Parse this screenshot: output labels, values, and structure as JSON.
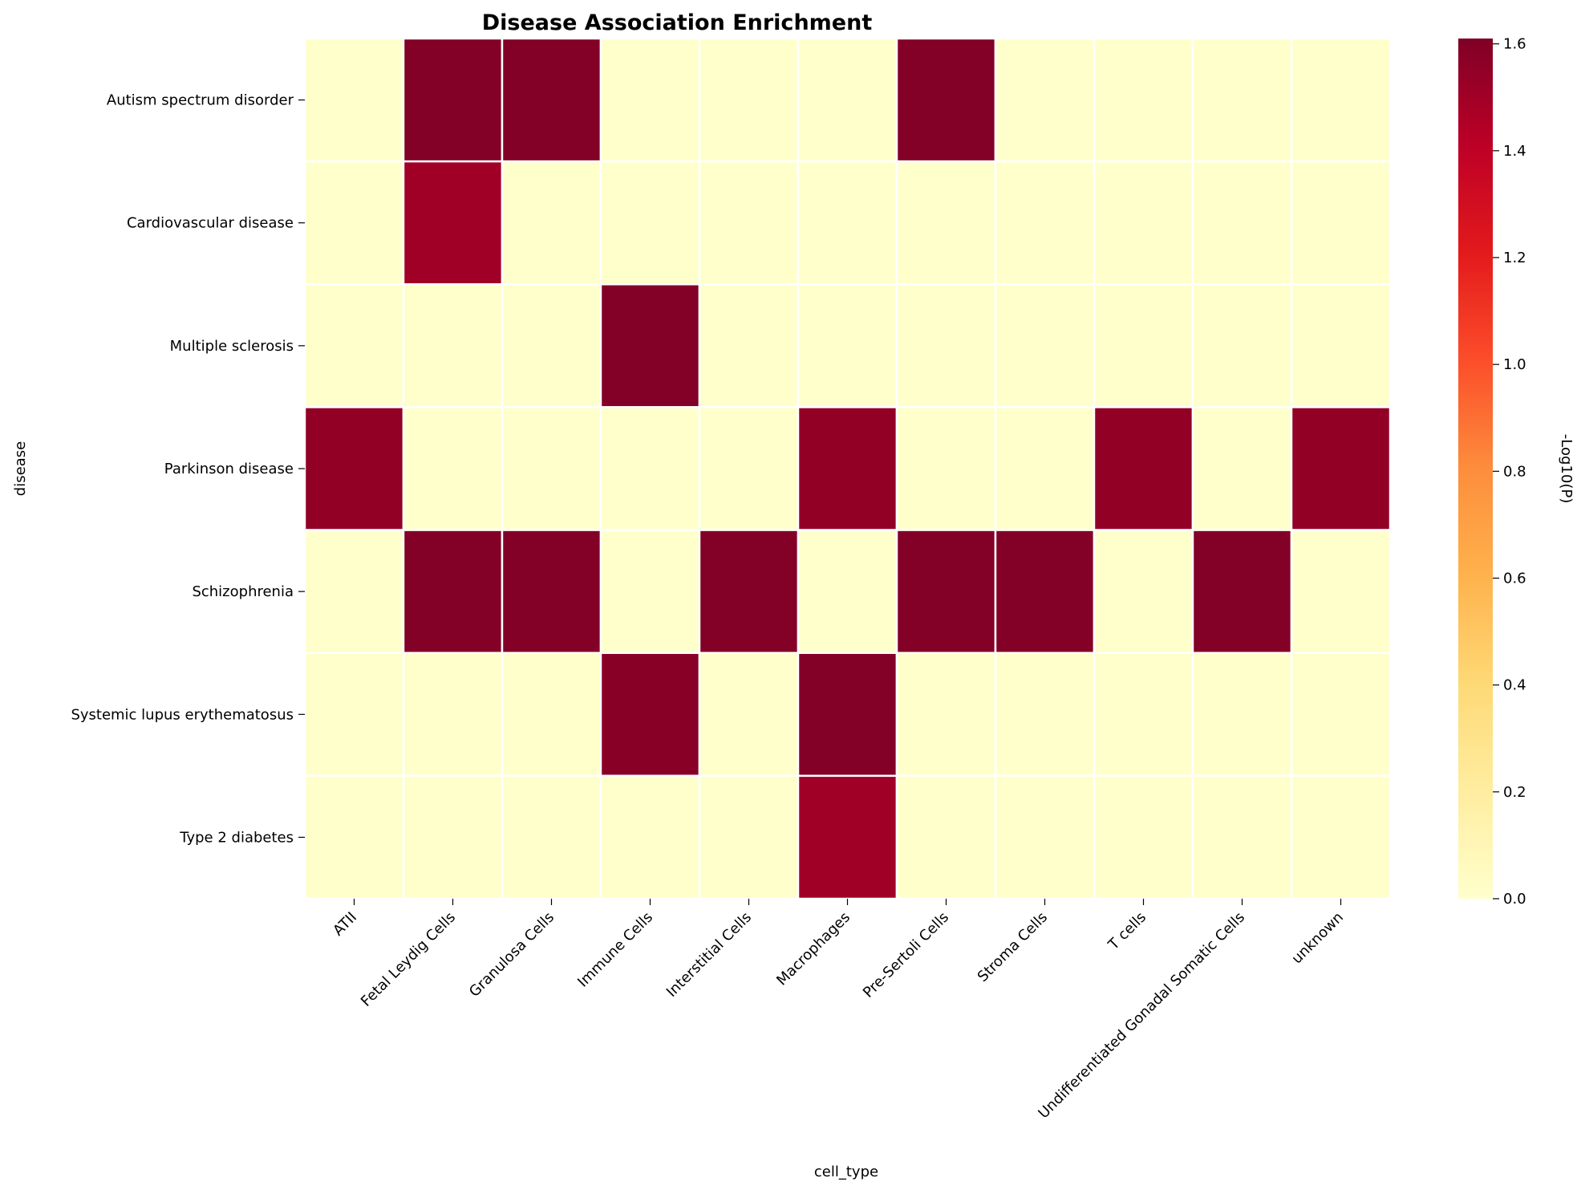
{
  "chart_data": {
    "type": "heatmap",
    "title": "Disease Association Enrichment",
    "xlabel": "cell_type",
    "ylabel": "disease",
    "colorbar_label": "-Log10(P)",
    "colormap": "YlOrRd",
    "colorbar_ticks": [
      "0.0",
      "0.2",
      "0.4",
      "0.6",
      "0.8",
      "1.0",
      "1.2",
      "1.4",
      "1.6"
    ],
    "vmin": 0,
    "vmax": 1.61,
    "cell_border_color": "#ffffff",
    "x_categories": [
      "ATII",
      "Fetal Leydig Cells",
      "Granulosa Cells",
      "Immune Cells",
      "Interstitial Cells",
      "Macrophages",
      "Pre-Sertoli Cells",
      "Stroma Cells",
      "T cells",
      "Undifferentiated Gonadal Somatic Cells",
      "unknown"
    ],
    "y_categories": [
      "Autism spectrum disorder",
      "Cardiovascular disease",
      "Multiple sclerosis",
      "Parkinson disease",
      "Schizophrenia",
      "Systemic lupus erythematosus",
      "Type 2 diabetes"
    ],
    "values": [
      [
        0,
        1.6,
        1.6,
        0,
        0,
        0,
        1.6,
        0,
        0,
        0,
        0
      ],
      [
        0,
        1.5,
        0,
        0,
        0,
        0,
        0,
        0,
        0,
        0,
        0
      ],
      [
        0,
        0,
        0,
        1.6,
        0,
        0,
        0,
        0,
        0,
        0,
        0
      ],
      [
        1.55,
        0,
        0,
        0,
        0,
        1.55,
        0,
        0,
        1.55,
        0,
        1.55
      ],
      [
        0,
        1.6,
        1.6,
        0,
        1.6,
        0,
        1.6,
        1.6,
        0,
        1.6,
        0
      ],
      [
        0,
        0,
        0,
        1.58,
        0,
        1.6,
        0,
        0,
        0,
        0,
        0
      ],
      [
        0,
        0,
        0,
        0,
        0,
        1.5,
        0,
        0,
        0,
        0,
        0
      ]
    ]
  }
}
